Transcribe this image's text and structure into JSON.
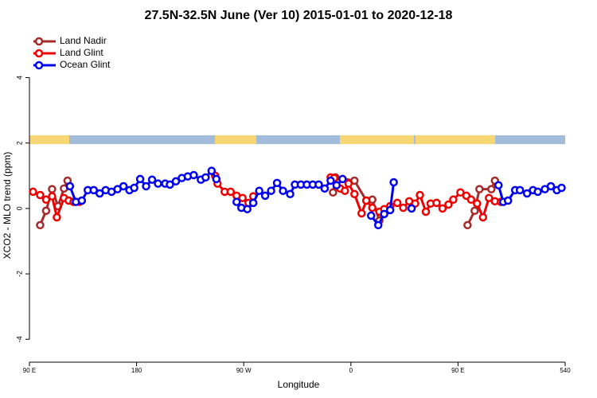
{
  "chart_data": {
    "type": "line",
    "title": "27.5N-32.5N June (Ver 10)   2015-01-01 to 2020-12-18",
    "xlabel": "Longitude",
    "ylabel": "XCO2 - MLO trend (ppm)",
    "xlim": [
      90,
      540
    ],
    "xticks": [
      {
        "value": 90,
        "label": "90 E"
      },
      180,
      {
        "value": 270,
        "label": "90 W"
      },
      {
        "value": 360,
        "label": "0"
      },
      {
        "value": 450,
        "label": "90 E"
      },
      540
    ],
    "ylim": [
      -4.7,
      5.4
    ],
    "yticks": [
      -4,
      -2,
      0,
      2,
      4
    ],
    "legend": "top-left",
    "series": [
      {
        "name": "Land Nadir",
        "color": "#a52a2a",
        "x": [
          99,
          104,
          109,
          114,
          119,
          122,
          200,
          345,
          347,
          363,
          373,
          378,
          384,
          387,
          420,
          458,
          464,
          468,
          478,
          481
        ],
        "values": [
          -0.51,
          -0.07,
          0.59,
          0.07,
          0.61,
          0.85,
          null,
          0.49,
          0.95,
          0.85,
          0.24,
          0.27,
          -0.37,
          -0.1,
          null,
          -0.51,
          -0.07,
          0.59,
          0.59,
          0.85
        ]
      },
      {
        "name": "Land Glint",
        "color": "#ee0000",
        "x": [
          93,
          99,
          104,
          109,
          113,
          119,
          123,
          127,
          132,
          190,
          246,
          248,
          254,
          259,
          264,
          269,
          274,
          278,
          310,
          343,
          346,
          351,
          355,
          358,
          363,
          369,
          373,
          378,
          384,
          388,
          393,
          399,
          404,
          409,
          414,
          418,
          423,
          427,
          432,
          437,
          442,
          446,
          452,
          457,
          461,
          466,
          471,
          476,
          481,
          486
        ],
        "values": [
          0.51,
          0.41,
          0.27,
          0.37,
          -0.27,
          0.32,
          0.24,
          0.2,
          0.2,
          null,
          1.0,
          0.76,
          0.51,
          0.51,
          0.39,
          0.32,
          0.17,
          0.37,
          null,
          0.95,
          0.93,
          0.61,
          0.54,
          0.76,
          0.44,
          -0.15,
          0.24,
          0.02,
          -0.1,
          -0.02,
          0.07,
          0.17,
          0.02,
          0.22,
          0.15,
          0.41,
          -0.1,
          0.15,
          0.17,
          0,
          0.12,
          0.27,
          0.49,
          0.39,
          0.27,
          0.15,
          -0.27,
          0.32,
          0.22,
          0.2
        ]
      },
      {
        "name": "Ocean Glint",
        "color": "#0000ee",
        "x": [
          124,
          129,
          134,
          139,
          144,
          149,
          154,
          159,
          164,
          169,
          174,
          178,
          183,
          188,
          193,
          198,
          204,
          208,
          213,
          218,
          223,
          228,
          234,
          238,
          243,
          247,
          255,
          264,
          268,
          273,
          278,
          283,
          288,
          293,
          298,
          303,
          309,
          313,
          318,
          323,
          328,
          333,
          338,
          343,
          348,
          353,
          365,
          377,
          383,
          388,
          393,
          396,
          404,
          411,
          450,
          484,
          488,
          492,
          498,
          502,
          508,
          513,
          517,
          523,
          528,
          533,
          537
        ],
        "values": [
          0.68,
          0.2,
          0.24,
          0.56,
          0.56,
          0.46,
          0.56,
          0.51,
          0.59,
          0.68,
          0.56,
          0.63,
          0.9,
          0.68,
          0.88,
          0.76,
          0.76,
          0.73,
          0.83,
          0.93,
          0.98,
          1.02,
          0.88,
          0.95,
          1.15,
          0.9,
          null,
          0.2,
          0.02,
          -0.02,
          0.17,
          0.54,
          0.39,
          0.54,
          0.78,
          0.54,
          0.44,
          0.73,
          0.73,
          0.73,
          0.73,
          0.73,
          0.61,
          0.85,
          0.71,
          0.9,
          null,
          -0.22,
          -0.51,
          -0.17,
          -0.05,
          0.8,
          null,
          0,
          null,
          0.71,
          0.2,
          0.24,
          0.56,
          0.56,
          0.46,
          0.56,
          0.51,
          0.59,
          0.68,
          0.56,
          0.63
        ]
      }
    ]
  }
}
